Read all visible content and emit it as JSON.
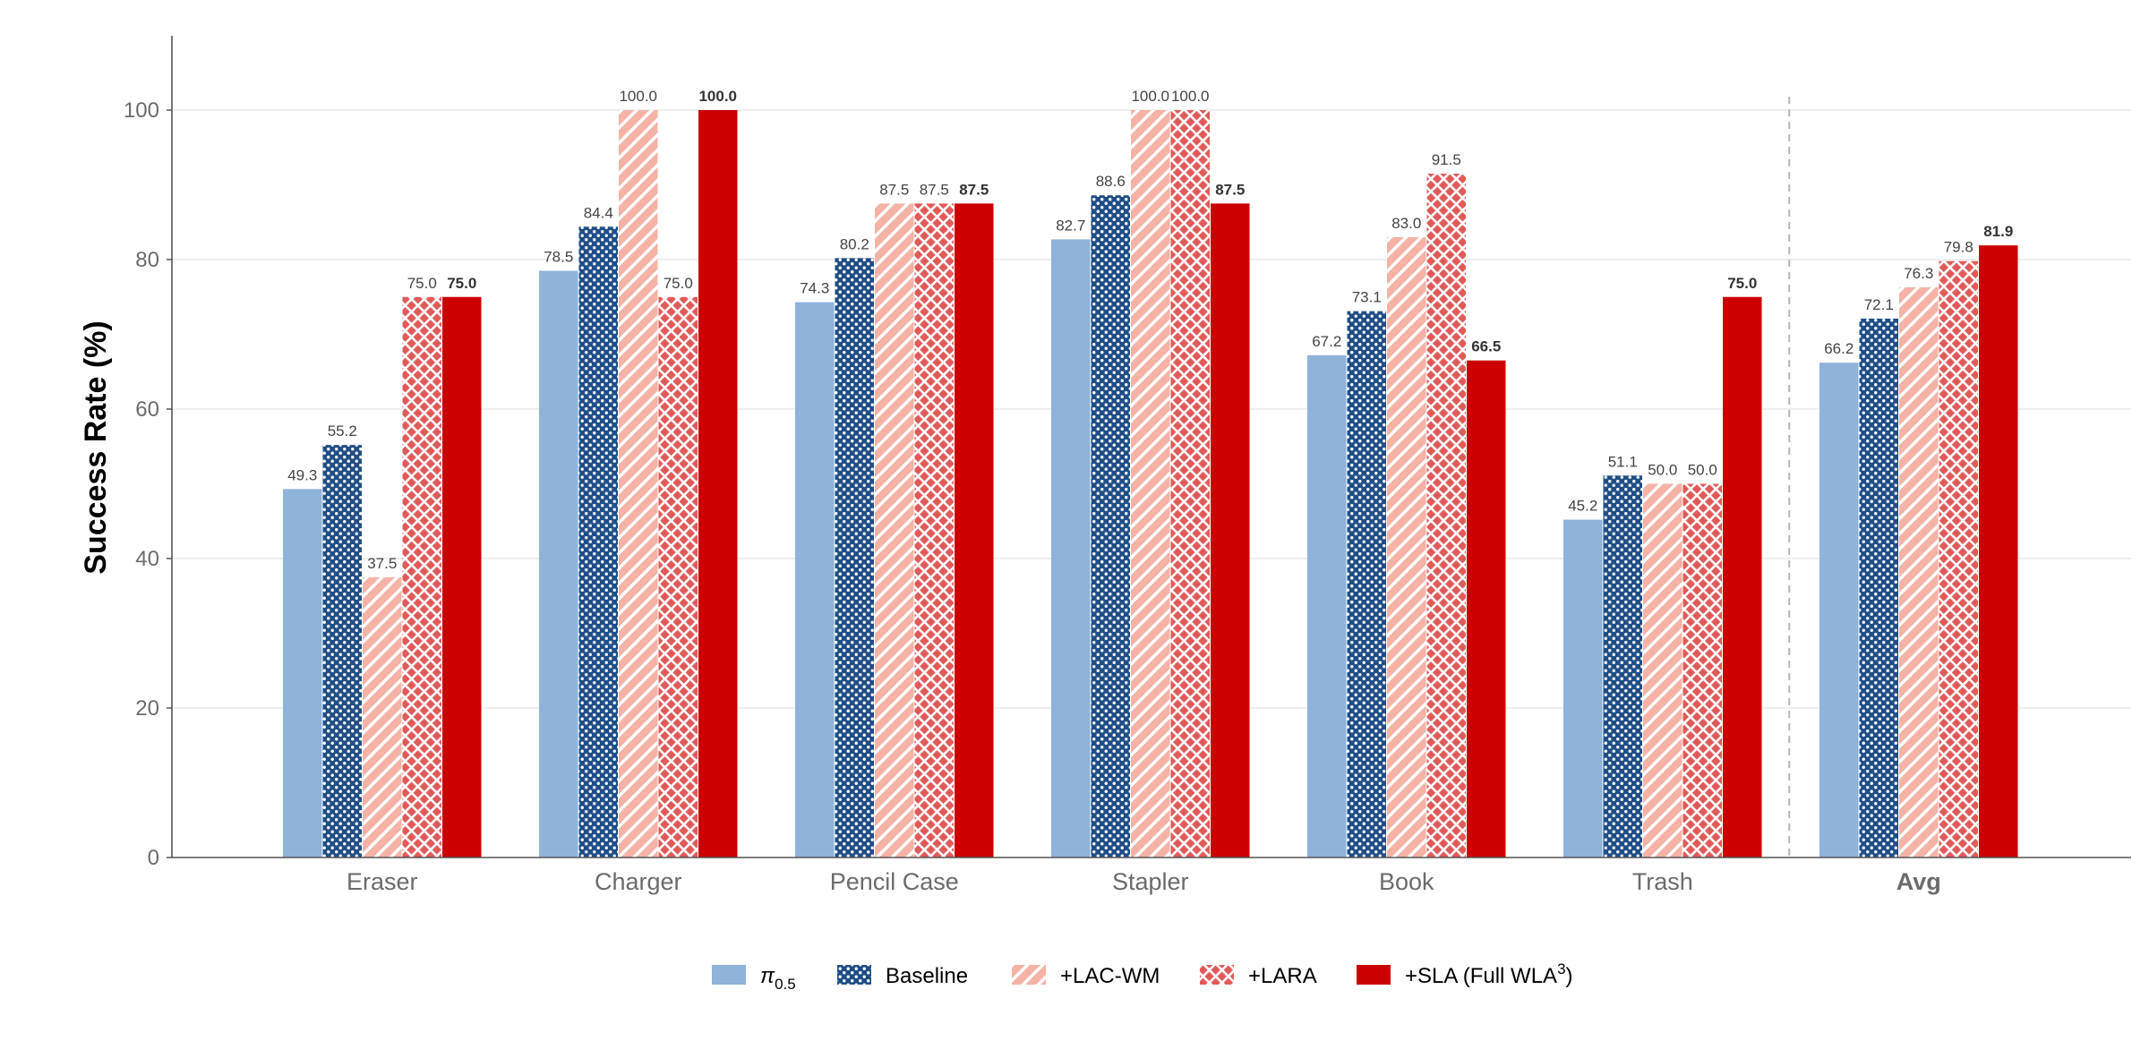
{
  "chart_data": {
    "type": "bar",
    "ylabel": "Success Rate (%)",
    "ylim": [
      0,
      110
    ],
    "yticks": [
      0,
      20,
      40,
      60,
      80,
      100
    ],
    "grid": true,
    "legend_position": "bottom",
    "categories": [
      "Eraser",
      "Charger",
      "Pencil Case",
      "Stapler",
      "Book",
      "Trash",
      "Avg"
    ],
    "bold_categories": [
      "Avg"
    ],
    "separator_before": "Avg",
    "series": [
      {
        "name": "π",
        "name_sub": "0.5",
        "fill": "#8fb3d9",
        "pattern": "solid",
        "values": [
          49.3,
          78.5,
          74.3,
          82.7,
          67.2,
          45.2,
          66.2
        ]
      },
      {
        "name": "Baseline",
        "fill": "#1f4e85",
        "pattern": "dots",
        "values": [
          55.2,
          84.4,
          80.2,
          88.6,
          73.1,
          51.1,
          72.1
        ]
      },
      {
        "name": "+LAC-WM",
        "fill": "#f4b3a6",
        "pattern": "diagonal",
        "values": [
          37.5,
          100.0,
          87.5,
          100.0,
          83.0,
          50.0,
          76.3
        ]
      },
      {
        "name": "+LARA",
        "fill": "#e05a5a",
        "pattern": "crosshatch",
        "values": [
          75.0,
          75.0,
          87.5,
          100.0,
          91.5,
          50.0,
          79.8
        ]
      },
      {
        "name": "+SLA (Full WLA",
        "name_sup": "3",
        "name_suffix": ")",
        "fill": "#cc0000",
        "pattern": "solid",
        "bold_labels": true,
        "values": [
          75.0,
          100.0,
          87.5,
          87.5,
          66.5,
          75.0,
          81.9
        ]
      }
    ]
  }
}
